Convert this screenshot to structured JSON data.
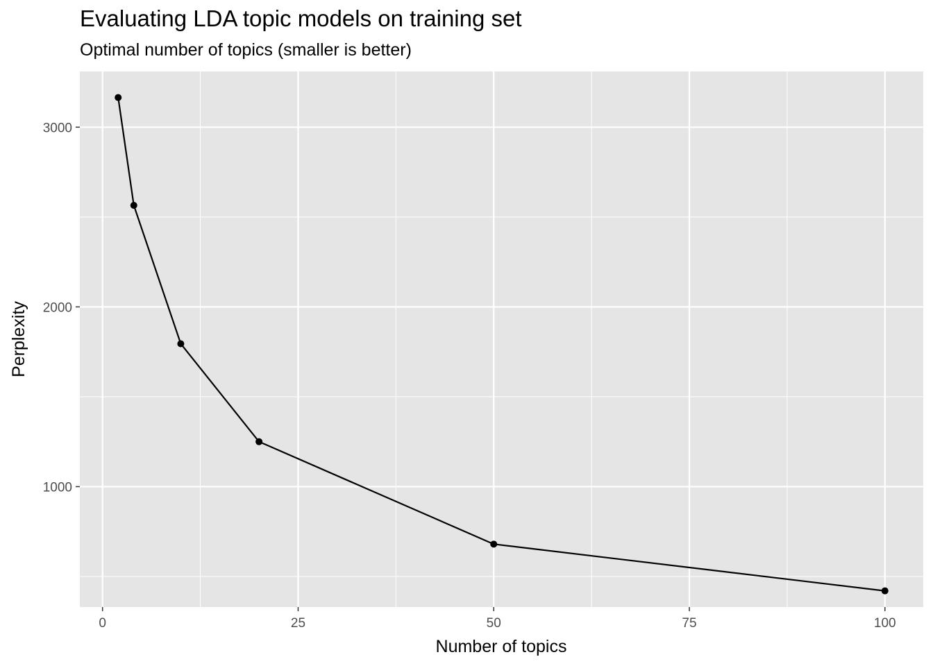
{
  "chart_data": {
    "type": "line",
    "title": "Evaluating LDA topic models on training set",
    "subtitle": "Optimal number of topics (smaller is better)",
    "xlabel": "Number of topics",
    "ylabel": "Perplexity",
    "x": [
      2,
      4,
      10,
      20,
      50,
      100
    ],
    "series": [
      {
        "values": [
          3165,
          2565,
          1795,
          1250,
          680,
          420
        ]
      }
    ],
    "xlim": [
      -2.9,
      104.9
    ],
    "ylim": [
      330,
      3310
    ],
    "x_ticks": [
      0,
      25,
      50,
      75,
      100
    ],
    "x_tick_labels": [
      "0",
      "25",
      "50",
      "75",
      "100"
    ],
    "y_ticks": [
      1000,
      2000,
      3000
    ],
    "y_tick_labels": [
      "1000",
      "2000",
      "3000"
    ],
    "grid": true,
    "legend": "none",
    "colors": {
      "panel_background": "#e5e5e5",
      "grid_line": "#ffffff",
      "series_line": "#000000",
      "tick_text": "#4d4d4d"
    }
  }
}
